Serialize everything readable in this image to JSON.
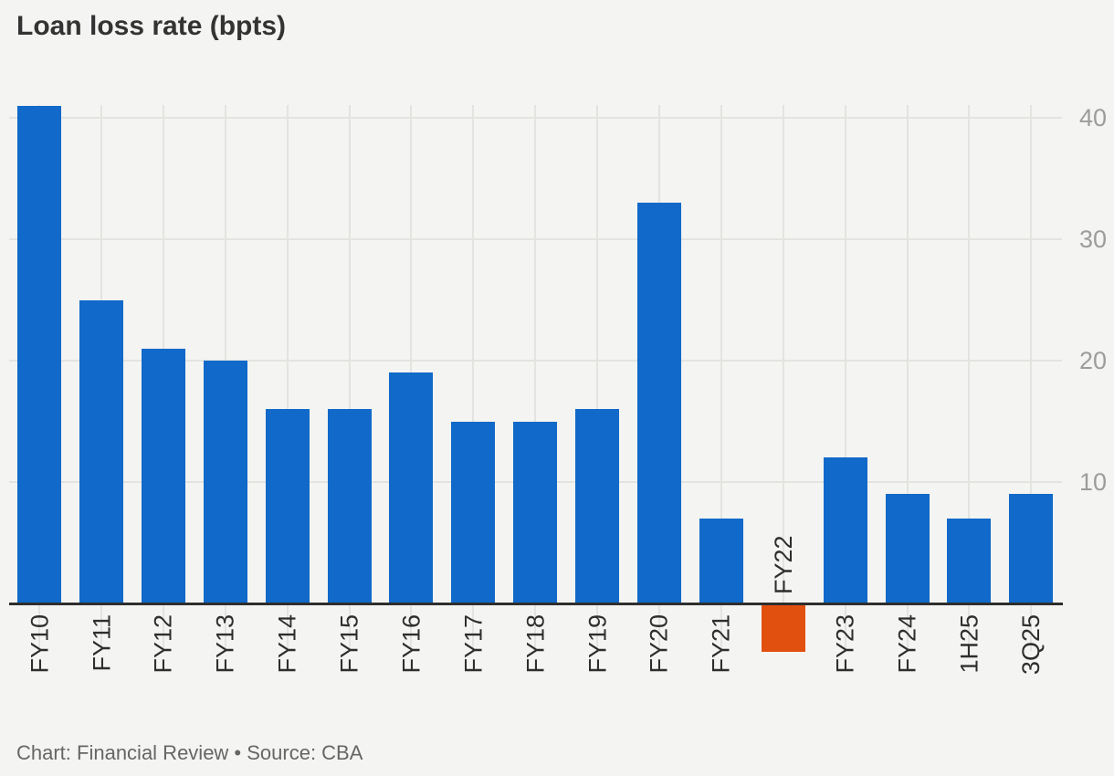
{
  "title": "Loan loss rate (bpts)",
  "footer": "Chart: Financial Review • Source: CBA",
  "y_axis": {
    "tick_labels": [
      "10",
      "20",
      "30",
      "40"
    ],
    "side": "right"
  },
  "chart_data": {
    "type": "bar",
    "title": "Loan loss rate (bpts)",
    "categories": [
      "FY10",
      "FY11",
      "FY12",
      "FY13",
      "FY14",
      "FY15",
      "FY16",
      "FY17",
      "FY18",
      "FY19",
      "FY20",
      "FY21",
      "FY22",
      "FY23",
      "FY24",
      "1H25",
      "3Q25"
    ],
    "values": [
      41,
      25,
      21,
      20,
      16,
      16,
      19,
      15,
      15,
      16,
      33,
      7,
      -4,
      12,
      9,
      7,
      9
    ],
    "xlabel": "",
    "ylabel": "Loan loss rate (bpts)",
    "yticks": [
      10,
      20,
      30,
      40
    ],
    "ylim": [
      -5,
      41.5
    ],
    "grid": true,
    "legend": "none",
    "xlabel_rotation": -90,
    "bar_color": "#1169c9",
    "negative_bar_color": "#e2500f",
    "highlight_category": "FY22",
    "credit": "Chart: Financial Review",
    "source": "Source: CBA"
  },
  "colors": {
    "background": "#f4f4f2",
    "bar_blue": "#1169c9",
    "bar_orange": "#e2500f",
    "axis_line": "#2e2e2e",
    "gridline": "#e3e3e0",
    "ytick_label": "#9c9c9c",
    "xtick_label": "#2e2e2e",
    "title_text": "#333333",
    "footer_text": "#666666"
  }
}
